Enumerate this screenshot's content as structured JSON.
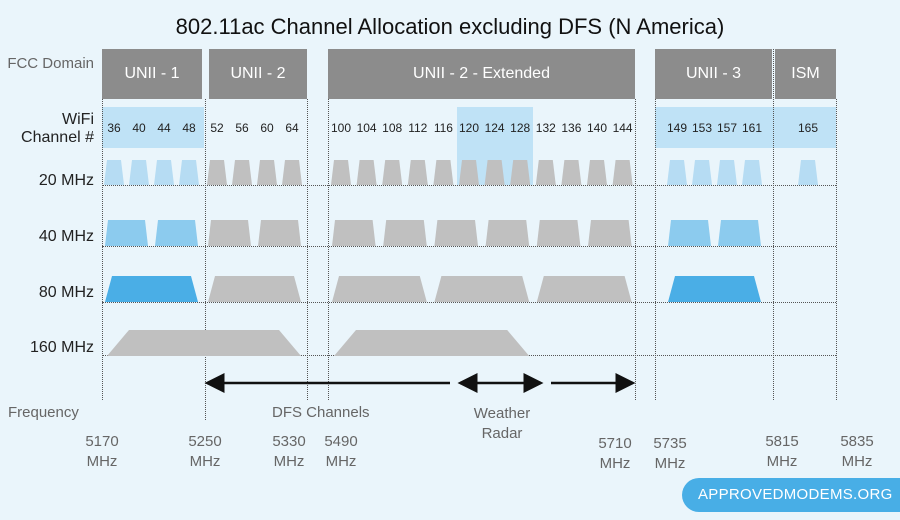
{
  "title": "802.11ac Channel Allocation excluding DFS (N America)",
  "row_labels": {
    "fcc": "FCC Domain",
    "wifi": "WiFi Channel #",
    "mhz20": "20 MHz",
    "mhz40": "40 MHz",
    "mhz80": "80 MHz",
    "mhz160": "160 MHz",
    "frequency": "Frequency"
  },
  "bands": [
    "UNII - 1",
    "UNII - 2",
    "UNII - 2 - Extended",
    "UNII - 3",
    "ISM"
  ],
  "channels": [
    "36",
    "40",
    "44",
    "48",
    "52",
    "56",
    "60",
    "64",
    "100",
    "104",
    "108",
    "112",
    "116",
    "120",
    "124",
    "128",
    "132",
    "136",
    "140",
    "144",
    "149",
    "153",
    "157",
    "161",
    "165"
  ],
  "non_dfs_channels": [
    36,
    40,
    44,
    48,
    149,
    153,
    157,
    161,
    165
  ],
  "weather_radar_channels": [
    120,
    124,
    128
  ],
  "channels_40": [
    [
      36,
      40
    ],
    [
      44,
      48
    ],
    [
      52,
      56
    ],
    [
      60,
      64
    ],
    [
      100,
      104
    ],
    [
      108,
      112
    ],
    [
      116,
      120
    ],
    [
      124,
      128
    ],
    [
      132,
      136
    ],
    [
      140,
      144
    ],
    [
      149,
      153
    ],
    [
      157,
      161
    ]
  ],
  "channels_80": [
    [
      36,
      48
    ],
    [
      52,
      64
    ],
    [
      100,
      112
    ],
    [
      116,
      128
    ],
    [
      132,
      144
    ],
    [
      149,
      161
    ]
  ],
  "channels_160": [
    [
      36,
      64
    ],
    [
      100,
      128
    ]
  ],
  "annotations": {
    "dfs": "DFS Channels",
    "weather": "Weather Radar"
  },
  "frequencies": [
    {
      "value": "5170",
      "unit": "MHz"
    },
    {
      "value": "5250",
      "unit": "MHz"
    },
    {
      "value": "5330",
      "unit": "MHz"
    },
    {
      "value": "5490",
      "unit": "MHz"
    },
    {
      "value": "5710",
      "unit": "MHz"
    },
    {
      "value": "5735",
      "unit": "MHz"
    },
    {
      "value": "5815",
      "unit": "MHz"
    },
    {
      "value": "5835",
      "unit": "MHz"
    }
  ],
  "watermark": "APPROVEDMODEMS.ORG",
  "colors": {
    "background": "#eaf5fb",
    "band": "#8c8c8c",
    "non_dfs_light": "#b6dcf3",
    "non_dfs_mid": "#8ccbee",
    "non_dfs_dark": "#4aaee6",
    "dfs": "#c0c0c0"
  }
}
